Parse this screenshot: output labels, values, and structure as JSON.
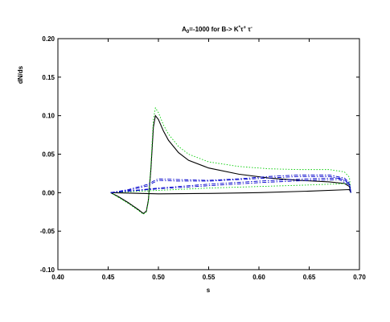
{
  "chart_data": {
    "type": "line",
    "title": "A₀=-1000 for B-> K* τ⁺ τ⁻",
    "title_parts": {
      "a": "A",
      "a_sub": "0",
      "mid": "=-1000 for B-> K",
      "k_sup": "*",
      "tau1": "τ",
      "tau1_sup": "+",
      "tau2": " τ",
      "tau2_sup": "-"
    },
    "xlabel": "s",
    "ylabel": "dN/ds",
    "xlim": [
      0.4,
      0.7
    ],
    "ylim": [
      -0.1,
      0.2
    ],
    "x_ticks": [
      "0.40",
      "0.45",
      "0.50",
      "0.55",
      "0.60",
      "0.65",
      "0.70"
    ],
    "y_ticks": [
      "-0.10",
      "-0.05",
      "0.00",
      "0.05",
      "0.10",
      "0.15",
      "0.20"
    ],
    "grid": false,
    "legend": "none",
    "colors": {
      "black": "#000000",
      "green": "#00cc00",
      "blue": "#0000cc"
    },
    "series": [
      {
        "color": "#000000",
        "style": "solid",
        "x": [
          0.4525,
          0.46,
          0.47,
          0.48,
          0.485,
          0.488,
          0.49,
          0.4925,
          0.495,
          0.497,
          0.5,
          0.505,
          0.51,
          0.52,
          0.53,
          0.55,
          0.58,
          0.61,
          0.64,
          0.67,
          0.685,
          0.69,
          0.6915
        ],
        "y": [
          0.0,
          -0.005,
          -0.013,
          -0.022,
          -0.027,
          -0.024,
          -0.01,
          0.03,
          0.085,
          0.1,
          0.095,
          0.08,
          0.068,
          0.052,
          0.042,
          0.032,
          0.024,
          0.019,
          0.016,
          0.014,
          0.012,
          0.008,
          0.0
        ]
      },
      {
        "color": "#000000",
        "style": "solid",
        "x": [
          0.4525,
          0.5,
          0.55,
          0.6,
          0.65,
          0.69,
          0.6915
        ],
        "y": [
          0.0,
          -0.0015,
          -0.001,
          0.0,
          0.002,
          0.004,
          0.0
        ]
      },
      {
        "color": "#00cc00",
        "style": "dotted",
        "x": [
          0.4525,
          0.46,
          0.47,
          0.48,
          0.485,
          0.488,
          0.49,
          0.4925,
          0.495,
          0.497,
          0.5,
          0.505,
          0.51,
          0.52,
          0.53,
          0.55,
          0.58,
          0.61,
          0.64,
          0.67,
          0.685,
          0.69,
          0.6915
        ],
        "y": [
          0.0,
          -0.006,
          -0.014,
          -0.023,
          -0.028,
          -0.025,
          -0.012,
          0.035,
          0.095,
          0.11,
          0.104,
          0.088,
          0.076,
          0.06,
          0.05,
          0.04,
          0.034,
          0.031,
          0.03,
          0.03,
          0.027,
          0.02,
          0.0
        ]
      },
      {
        "color": "#00cc00",
        "style": "dotted",
        "x": [
          0.4525,
          0.5,
          0.55,
          0.6,
          0.65,
          0.69,
          0.6915
        ],
        "y": [
          0.0,
          0.003,
          0.006,
          0.008,
          0.01,
          0.012,
          0.0
        ]
      },
      {
        "color": "#0000cc",
        "style": "dash-dot",
        "x": [
          0.4525,
          0.47,
          0.49,
          0.495,
          0.5,
          0.52,
          0.55,
          0.58,
          0.61,
          0.64,
          0.67,
          0.685,
          0.69,
          0.6915
        ],
        "y": [
          0.0,
          0.004,
          0.011,
          0.015,
          0.018,
          0.017,
          0.016,
          0.018,
          0.021,
          0.023,
          0.023,
          0.019,
          0.013,
          0.0
        ]
      },
      {
        "color": "#0000cc",
        "style": "dash-dot",
        "x": [
          0.4525,
          0.5,
          0.55,
          0.6,
          0.65,
          0.68,
          0.69,
          0.6915
        ],
        "y": [
          0.0,
          0.006,
          0.011,
          0.015,
          0.018,
          0.019,
          0.012,
          0.0
        ]
      },
      {
        "color": "#0000cc",
        "style": "dash-dot",
        "x": [
          0.4525,
          0.47,
          0.49,
          0.495,
          0.5,
          0.52,
          0.55,
          0.58,
          0.61,
          0.64,
          0.67,
          0.685,
          0.69,
          0.6915
        ],
        "y": [
          0.0,
          0.003,
          0.009,
          0.013,
          0.016,
          0.015,
          0.015,
          0.017,
          0.019,
          0.021,
          0.021,
          0.017,
          0.011,
          0.0
        ]
      },
      {
        "color": "#0000cc",
        "style": "dash-dot",
        "x": [
          0.4525,
          0.5,
          0.55,
          0.6,
          0.65,
          0.68,
          0.69,
          0.6915
        ],
        "y": [
          0.0,
          0.005,
          0.009,
          0.013,
          0.016,
          0.017,
          0.01,
          0.0
        ]
      }
    ]
  }
}
